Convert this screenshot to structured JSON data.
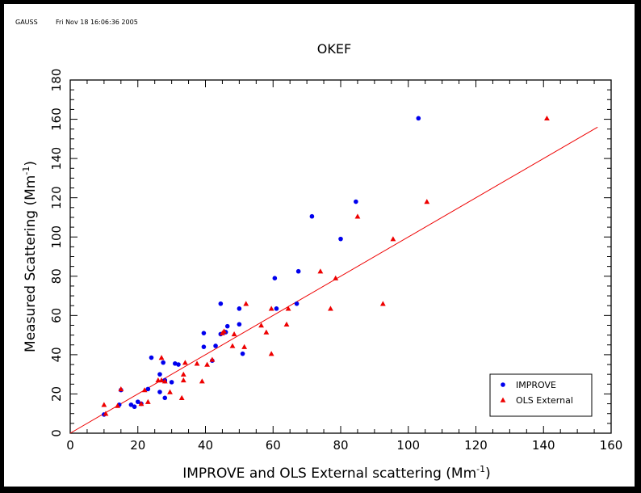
{
  "header": {
    "program": "GAUSS",
    "timestamp": "Fri Nov 18 16:06:36 2005"
  },
  "colors": {
    "improve": "#0000ee",
    "ols": "#ee0000",
    "fit_line": "#ee0000",
    "axis": "#000000"
  },
  "chart_data": {
    "type": "scatter",
    "title": "OKEF",
    "xlabel": "IMPROVE and OLS External scattering (Mm",
    "xlabel_sup": "-1",
    "xlabel_end": ")",
    "ylabel": "Measured Scattering (Mm",
    "ylabel_sup": "-1",
    "ylabel_end": ")",
    "xlim": [
      0,
      160
    ],
    "ylim": [
      0,
      180
    ],
    "xticks": [
      0,
      20,
      40,
      60,
      80,
      100,
      120,
      140,
      160
    ],
    "yticks": [
      0,
      20,
      40,
      60,
      80,
      100,
      120,
      140,
      160,
      180
    ],
    "grid": false,
    "legend_position": "bottom-right",
    "series": [
      {
        "name": "IMPROVE",
        "marker": "circle",
        "color": "#0000ee",
        "points": [
          [
            10,
            9.5
          ],
          [
            14.5,
            14.5
          ],
          [
            15,
            22
          ],
          [
            18,
            14.5
          ],
          [
            19,
            13.5
          ],
          [
            20,
            16
          ],
          [
            21,
            15
          ],
          [
            23,
            22.5
          ],
          [
            24,
            38.5
          ],
          [
            26.5,
            30
          ],
          [
            26.5,
            21
          ],
          [
            27.5,
            36
          ],
          [
            28,
            18
          ],
          [
            28,
            26.5
          ],
          [
            28,
            27
          ],
          [
            30,
            26
          ],
          [
            31,
            35.5
          ],
          [
            32,
            35
          ],
          [
            39.5,
            51
          ],
          [
            39.5,
            44
          ],
          [
            42,
            37
          ],
          [
            43,
            44.5
          ],
          [
            44.5,
            66
          ],
          [
            44.5,
            50.5
          ],
          [
            46,
            51.5
          ],
          [
            46.5,
            54.5
          ],
          [
            50,
            63.5
          ],
          [
            50,
            55.5
          ],
          [
            51,
            40.5
          ],
          [
            60.5,
            79
          ],
          [
            61,
            63.5
          ],
          [
            67,
            66
          ],
          [
            67.5,
            82.5
          ],
          [
            71.5,
            110.5
          ],
          [
            80,
            99
          ],
          [
            84.5,
            118
          ],
          [
            103,
            160.5
          ]
        ]
      },
      {
        "name": "OLS External",
        "marker": "triangle",
        "color": "#ee0000",
        "points": [
          [
            10,
            14.5
          ],
          [
            10.5,
            10
          ],
          [
            14,
            14
          ],
          [
            15,
            22.5
          ],
          [
            21,
            15
          ],
          [
            22,
            22
          ],
          [
            23,
            16
          ],
          [
            26,
            27
          ],
          [
            27,
            38.5
          ],
          [
            27,
            27
          ],
          [
            28,
            26.5
          ],
          [
            29.5,
            21
          ],
          [
            33,
            18
          ],
          [
            33.5,
            27
          ],
          [
            33.5,
            30
          ],
          [
            34,
            36
          ],
          [
            37.5,
            35.5
          ],
          [
            39,
            26.5
          ],
          [
            40.5,
            35
          ],
          [
            42,
            37.5
          ],
          [
            45,
            51
          ],
          [
            45.5,
            52
          ],
          [
            48,
            44.5
          ],
          [
            48.5,
            50.5
          ],
          [
            51.5,
            44
          ],
          [
            52,
            66
          ],
          [
            56.5,
            55
          ],
          [
            58,
            51.5
          ],
          [
            59.5,
            40.5
          ],
          [
            59.5,
            63.5
          ],
          [
            64,
            55.5
          ],
          [
            64.5,
            63.5
          ],
          [
            74,
            82.5
          ],
          [
            77,
            63.5
          ],
          [
            78.5,
            79
          ],
          [
            85,
            110.5
          ],
          [
            92.5,
            66
          ],
          [
            95.5,
            99
          ],
          [
            105.5,
            118
          ],
          [
            141,
            160.5
          ]
        ]
      }
    ],
    "fit_line": {
      "x": [
        0,
        156
      ],
      "y": [
        0,
        156
      ]
    }
  }
}
